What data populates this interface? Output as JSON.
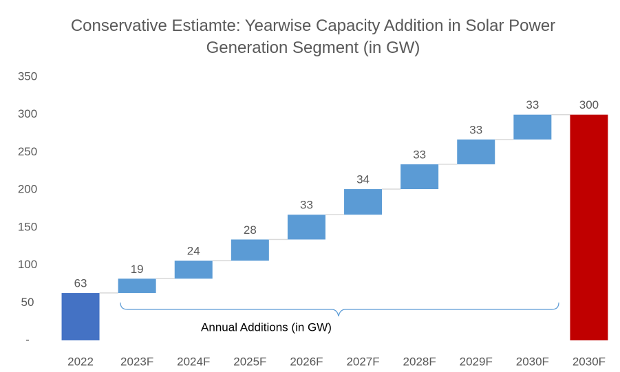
{
  "chart_data": {
    "type": "waterfall",
    "title": "Conservative Estiamte: Yearwise Capacity Addition in Solar Power Generation Segment (in GW)",
    "categories": [
      "2022",
      "2023F",
      "2024F",
      "2025F",
      "2026F",
      "2027F",
      "2028F",
      "2029F",
      "2030F",
      "2030F"
    ],
    "values": [
      63,
      19,
      24,
      28,
      33,
      34,
      33,
      33,
      33,
      300
    ],
    "colors": [
      "#4472c4",
      "#5b9bd5",
      "#5b9bd5",
      "#5b9bd5",
      "#5b9bd5",
      "#5b9bd5",
      "#5b9bd5",
      "#5b9bd5",
      "#5b9bd5",
      "#c00000"
    ],
    "ylim": [
      0,
      350
    ],
    "yticks": [
      {
        "value": 0,
        "label": "-"
      },
      50,
      100,
      150,
      200,
      250,
      300,
      350
    ],
    "annotation": "Annual Additions (in GW)"
  }
}
